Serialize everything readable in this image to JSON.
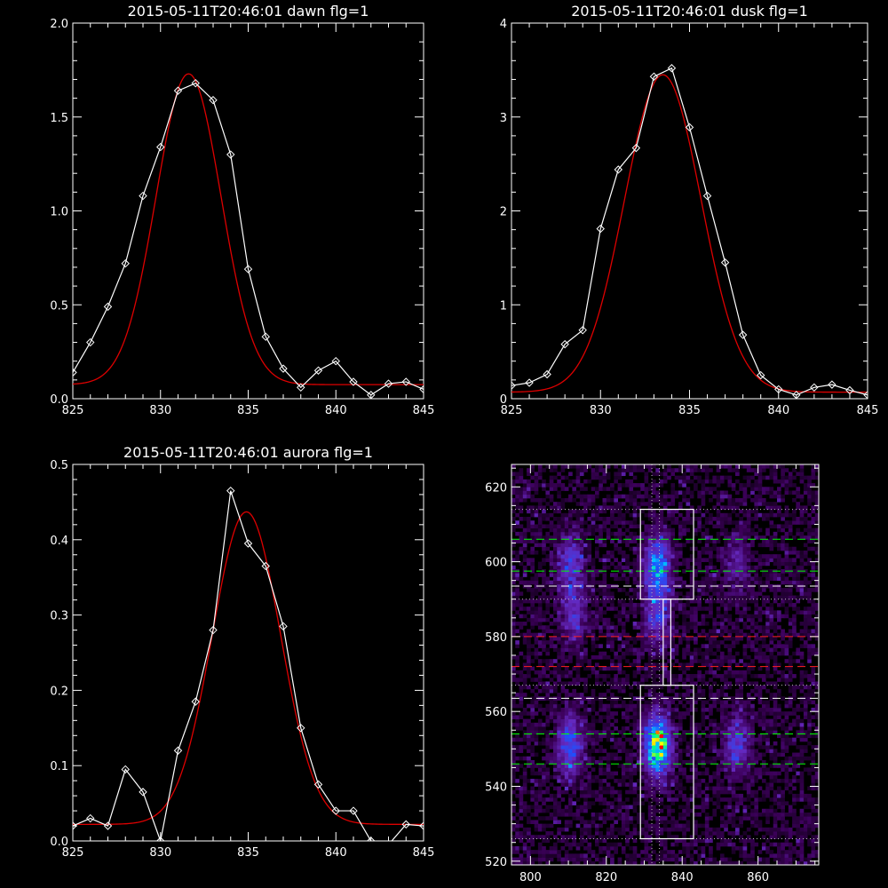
{
  "chart_data": [
    {
      "type": "line",
      "title": "2015-05-11T20:46:01 dawn flg=1",
      "xlim": [
        825,
        845
      ],
      "ylim": [
        0,
        2.0
      ],
      "xticks": [
        "825",
        "830",
        "835",
        "840",
        "845"
      ],
      "yticks": [
        "0.0",
        "0.5",
        "1.0",
        "1.5",
        "2.0"
      ],
      "ytick_values": [
        0,
        0.5,
        1.0,
        1.5,
        2.0
      ],
      "series": [
        {
          "color": "#ffffff",
          "marker": "diamond",
          "x": [
            825,
            826,
            827,
            828,
            829,
            830,
            831,
            832,
            833,
            834,
            835,
            836,
            837,
            838,
            839,
            840,
            841,
            842,
            843,
            844,
            845
          ],
          "y": [
            0.14,
            0.3,
            0.49,
            0.72,
            1.08,
            1.34,
            1.64,
            1.68,
            1.59,
            1.3,
            0.69,
            0.33,
            0.16,
            0.06,
            0.15,
            0.2,
            0.09,
            0.02,
            0.08,
            0.09,
            0.05
          ]
        },
        {
          "color": "#dd0000",
          "fit": {
            "a": 1.655,
            "mu": 831.6,
            "sigma": 1.85,
            "c": 0.075
          }
        }
      ]
    },
    {
      "type": "line",
      "title": "2015-05-11T20:46:01 dusk flg=1",
      "xlim": [
        825,
        845
      ],
      "ylim": [
        0,
        4
      ],
      "xticks": [
        "825",
        "830",
        "835",
        "840",
        "845"
      ],
      "yticks": [
        "0",
        "1",
        "2",
        "3",
        "4"
      ],
      "ytick_values": [
        0,
        1,
        2,
        3,
        4
      ],
      "series": [
        {
          "color": "#ffffff",
          "marker": "diamond",
          "x": [
            825,
            826,
            827,
            828,
            829,
            830,
            831,
            832,
            833,
            834,
            835,
            836,
            837,
            838,
            839,
            840,
            841,
            842,
            843,
            844,
            845
          ],
          "y": [
            0.14,
            0.17,
            0.26,
            0.58,
            0.73,
            1.81,
            2.44,
            2.67,
            3.43,
            3.52,
            2.89,
            2.16,
            1.45,
            0.68,
            0.25,
            0.1,
            0.04,
            0.12,
            0.15,
            0.09,
            0.04
          ]
        },
        {
          "color": "#dd0000",
          "fit": {
            "a": 3.38,
            "mu": 833.5,
            "sigma": 2.15,
            "c": 0.07
          }
        }
      ]
    },
    {
      "type": "line",
      "title": "2015-05-11T20:46:01 aurora flg=1",
      "xlim": [
        825,
        845
      ],
      "ylim": [
        0,
        0.5
      ],
      "xticks": [
        "825",
        "830",
        "835",
        "840",
        "845"
      ],
      "yticks": [
        "0.0",
        "0.1",
        "0.2",
        "0.3",
        "0.4",
        "0.5"
      ],
      "ytick_values": [
        0,
        0.1,
        0.2,
        0.3,
        0.4,
        0.5
      ],
      "series": [
        {
          "color": "#ffffff",
          "marker": "diamond",
          "x": [
            825,
            826,
            827,
            828,
            829,
            830,
            831,
            832,
            833,
            834,
            835,
            836,
            837,
            838,
            839,
            840,
            841,
            842,
            843,
            844,
            845
          ],
          "y": [
            0.02,
            0.03,
            0.02,
            0.095,
            0.065,
            0.0,
            0.12,
            0.185,
            0.28,
            0.465,
            0.395,
            0.365,
            0.285,
            0.15,
            0.075,
            0.04,
            0.04,
            0.0,
            -0.005,
            0.022,
            0.02
          ]
        },
        {
          "color": "#dd0000",
          "fit": {
            "a": 0.415,
            "mu": 834.9,
            "sigma": 1.95,
            "c": 0.022
          }
        }
      ]
    },
    {
      "type": "heatmap",
      "xlim": [
        795,
        876
      ],
      "ylim": [
        519,
        626
      ],
      "xticks": [
        "800",
        "820",
        "840",
        "860"
      ],
      "xtick_values": [
        800,
        820,
        840,
        860
      ],
      "yticks": [
        "520",
        "540",
        "560",
        "580",
        "600",
        "620"
      ],
      "ytick_values": [
        520,
        540,
        560,
        580,
        600,
        620
      ],
      "blobs": [
        {
          "x": 810.5,
          "y": 551,
          "amp": 0.4
        },
        {
          "x": 810.5,
          "y": 600,
          "amp": 0.3
        },
        {
          "x": 811.5,
          "y": 586,
          "amp": 0.26
        },
        {
          "x": 833.5,
          "y": 551,
          "amp": 0.8
        },
        {
          "x": 833.5,
          "y": 599,
          "amp": 0.5
        },
        {
          "x": 833.5,
          "y": 586,
          "amp": 0.3
        },
        {
          "x": 854.5,
          "y": 551,
          "amp": 0.3
        },
        {
          "x": 854.5,
          "y": 600,
          "amp": 0.18
        }
      ],
      "boxes": [
        {
          "x": [
            829,
            843
          ],
          "y": [
            526,
            567
          ]
        },
        {
          "x": [
            829,
            843
          ],
          "y": [
            590,
            614
          ]
        },
        {
          "x": [
            835,
            837
          ],
          "y": [
            567,
            590
          ]
        }
      ],
      "hlines": [
        {
          "y": 606,
          "color": "#00ff00",
          "style": "dashed"
        },
        {
          "y": 597.5,
          "color": "#00ff00",
          "style": "dashed"
        },
        {
          "y": 593.5,
          "color": "#ffffff",
          "style": "dashed"
        },
        {
          "y": 580,
          "color": "#ff2020",
          "style": "dashed"
        },
        {
          "y": 572,
          "color": "#ff2020",
          "style": "dashed"
        },
        {
          "y": 563.5,
          "color": "#ffffff",
          "style": "dashed"
        },
        {
          "y": 554,
          "color": "#00ff00",
          "style": "dashed"
        },
        {
          "y": 546,
          "color": "#00ff00",
          "style": "dashed"
        },
        {
          "y": 614,
          "color": "#bbbbbb",
          "style": "dotted"
        },
        {
          "y": 590,
          "color": "#bbbbbb",
          "style": "dotted"
        },
        {
          "y": 567,
          "color": "#bbbbbb",
          "style": "dotted"
        },
        {
          "y": 526,
          "color": "#bbbbbb",
          "style": "dotted"
        }
      ],
      "vlines": [
        {
          "x": 832,
          "color": "#bbbbbb",
          "style": "dotted"
        },
        {
          "x": 834,
          "color": "#bbbbbb",
          "style": "dotted"
        }
      ]
    }
  ]
}
